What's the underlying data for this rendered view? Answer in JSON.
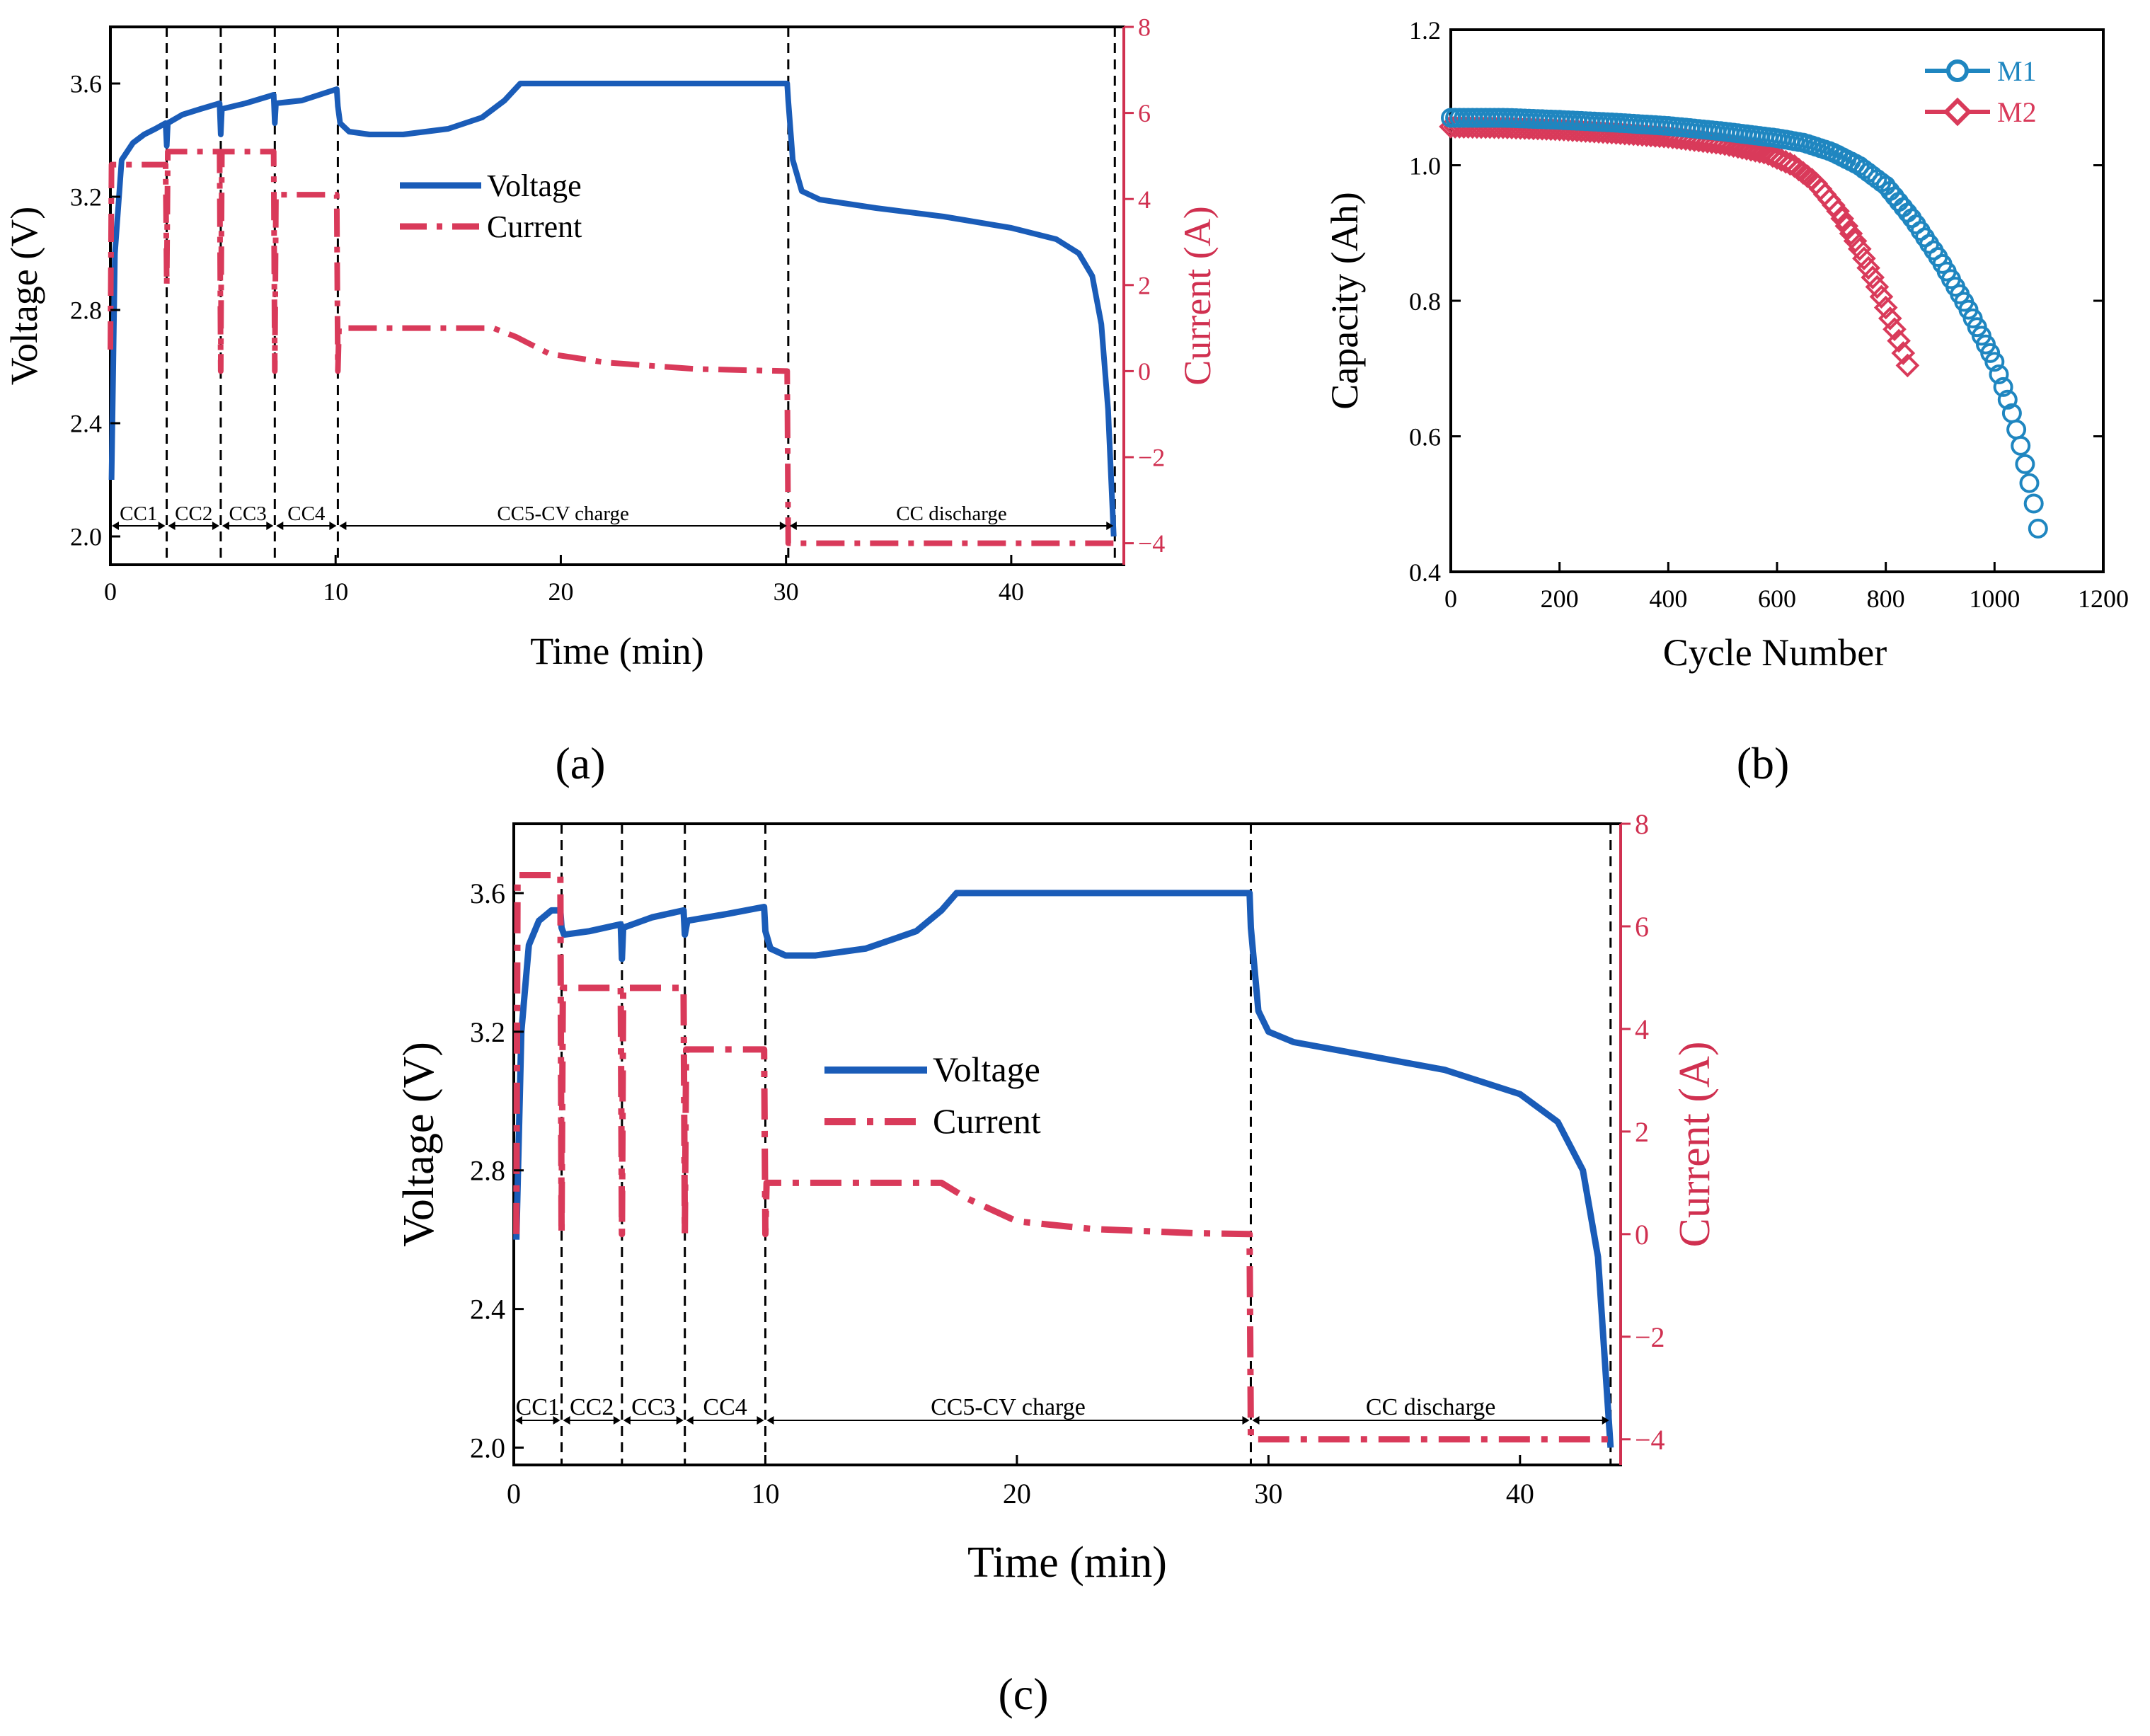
{
  "colors": {
    "voltage": "#1a5cb8",
    "current": "#d93a5a",
    "m1": "#1f86c0",
    "m2": "#d93a5a",
    "axis_red": "#d03050"
  },
  "chart_data": [
    {
      "type": "line",
      "panel": "(a)",
      "xlabel": "Time (min)",
      "ylabel": "Voltage (V)",
      "y2label": "Current (A)",
      "xlim": [
        0,
        45
      ],
      "ylim": [
        1.9,
        3.8
      ],
      "y2lim": [
        -4.5,
        8
      ],
      "xticks": [
        "0",
        "10",
        "20",
        "30",
        "40"
      ],
      "xtick_values": [
        0,
        10,
        20,
        30,
        40
      ],
      "yticks": [
        "2.0",
        "2.4",
        "2.8",
        "3.2",
        "3.6"
      ],
      "ytick_values": [
        2.0,
        2.4,
        2.8,
        3.2,
        3.6
      ],
      "y2ticks": [
        "−4",
        "−2",
        "0",
        "2",
        "4",
        "6",
        "8"
      ],
      "y2tick_values": [
        -4,
        -2,
        0,
        2,
        4,
        6,
        8
      ],
      "legend": [
        "Voltage",
        "Current"
      ],
      "stage_boundaries": [
        2.5,
        4.9,
        7.3,
        10.1,
        30.1,
        44.6
      ],
      "stage_labels": [
        {
          "text": "CC1",
          "from": 0,
          "to": 2.5
        },
        {
          "text": "CC2",
          "from": 2.5,
          "to": 4.9
        },
        {
          "text": "CC3",
          "from": 4.9,
          "to": 7.3
        },
        {
          "text": "CC4",
          "from": 7.3,
          "to": 10.1
        },
        {
          "text": "CC5-CV charge",
          "from": 10.1,
          "to": 30.1
        },
        {
          "text": "CC discharge",
          "from": 30.1,
          "to": 44.6
        }
      ],
      "series": [
        {
          "name": "Voltage",
          "axis": "left",
          "points": [
            [
              0.05,
              2.2
            ],
            [
              0.2,
              3.0
            ],
            [
              0.5,
              3.33
            ],
            [
              1,
              3.39
            ],
            [
              1.5,
              3.42
            ],
            [
              2,
              3.44
            ],
            [
              2.45,
              3.46
            ],
            [
              2.5,
              3.38
            ],
            [
              2.55,
              3.46
            ],
            [
              3.2,
              3.49
            ],
            [
              4.0,
              3.51
            ],
            [
              4.85,
              3.53
            ],
            [
              4.9,
              3.42
            ],
            [
              4.95,
              3.51
            ],
            [
              6,
              3.53
            ],
            [
              7.25,
              3.56
            ],
            [
              7.3,
              3.46
            ],
            [
              7.35,
              3.53
            ],
            [
              8.5,
              3.54
            ],
            [
              10.05,
              3.58
            ],
            [
              10.1,
              3.52
            ],
            [
              10.2,
              3.46
            ],
            [
              10.6,
              3.43
            ],
            [
              11.5,
              3.42
            ],
            [
              13,
              3.42
            ],
            [
              15,
              3.44
            ],
            [
              16.5,
              3.48
            ],
            [
              17.5,
              3.54
            ],
            [
              18.2,
              3.6
            ],
            [
              20,
              3.6
            ],
            [
              25,
              3.6
            ],
            [
              30.05,
              3.6
            ],
            [
              30.1,
              3.54
            ],
            [
              30.3,
              3.33
            ],
            [
              30.7,
              3.22
            ],
            [
              31.5,
              3.19
            ],
            [
              34,
              3.16
            ],
            [
              37,
              3.13
            ],
            [
              40,
              3.09
            ],
            [
              42,
              3.05
            ],
            [
              43,
              3.0
            ],
            [
              43.6,
              2.92
            ],
            [
              44.0,
              2.75
            ],
            [
              44.3,
              2.45
            ],
            [
              44.55,
              2.0
            ]
          ]
        },
        {
          "name": "Current",
          "axis": "right",
          "points": [
            [
              0,
              0.5
            ],
            [
              0.05,
              4.8
            ],
            [
              2.45,
              4.8
            ],
            [
              2.5,
              2
            ],
            [
              2.55,
              5.1
            ],
            [
              4.85,
              5.1
            ],
            [
              4.9,
              0
            ],
            [
              4.95,
              5.1
            ],
            [
              7.25,
              5.1
            ],
            [
              7.3,
              0
            ],
            [
              7.35,
              4.1
            ],
            [
              10.05,
              4.1
            ],
            [
              10.1,
              0
            ],
            [
              10.15,
              1
            ],
            [
              17,
              1
            ],
            [
              18,
              0.8
            ],
            [
              19.5,
              0.4
            ],
            [
              22,
              0.2
            ],
            [
              26,
              0.05
            ],
            [
              30.05,
              0
            ],
            [
              30.1,
              -4
            ],
            [
              44.6,
              -4
            ]
          ]
        }
      ]
    },
    {
      "type": "scatter",
      "panel": "(b)",
      "xlabel": "Cycle Number",
      "ylabel": "Capacity (Ah)",
      "xlim": [
        0,
        1200
      ],
      "ylim": [
        0.4,
        1.2
      ],
      "xticks": [
        "0",
        "200",
        "400",
        "600",
        "800",
        "1000",
        "1200"
      ],
      "xtick_values": [
        0,
        200,
        400,
        600,
        800,
        1000,
        1200
      ],
      "yticks": [
        "0.4",
        "0.6",
        "0.8",
        "1.0",
        "1.2"
      ],
      "ytick_values": [
        0.4,
        0.6,
        0.8,
        1.0,
        1.2
      ],
      "legend": [
        "M1",
        "M2"
      ],
      "series": [
        {
          "name": "M1",
          "marker": "circle",
          "points": [
            [
              0,
              1.07
            ],
            [
              100,
              1.07
            ],
            [
              200,
              1.067
            ],
            [
              300,
              1.063
            ],
            [
              400,
              1.058
            ],
            [
              500,
              1.05
            ],
            [
              600,
              1.04
            ],
            [
              650,
              1.033
            ],
            [
              700,
              1.02
            ],
            [
              750,
              1.0
            ],
            [
              800,
              0.97
            ],
            [
              850,
              0.92
            ],
            [
              900,
              0.86
            ],
            [
              950,
              0.79
            ],
            [
              1000,
              0.71
            ],
            [
              1030,
              0.64
            ],
            [
              1050,
              0.58
            ],
            [
              1070,
              0.51
            ],
            [
              1083,
              0.45
            ]
          ]
        },
        {
          "name": "M2",
          "marker": "diamond",
          "points": [
            [
              0,
              1.057
            ],
            [
              100,
              1.056
            ],
            [
              200,
              1.053
            ],
            [
              300,
              1.048
            ],
            [
              400,
              1.042
            ],
            [
              500,
              1.032
            ],
            [
              580,
              1.018
            ],
            [
              630,
              1.0
            ],
            [
              670,
              0.975
            ],
            [
              710,
              0.935
            ],
            [
              750,
              0.88
            ],
            [
              790,
              0.81
            ],
            [
              820,
              0.75
            ],
            [
              842,
              0.7
            ]
          ]
        }
      ]
    },
    {
      "type": "line",
      "panel": "(c)",
      "xlabel": "Time (min)",
      "ylabel": "Voltage (V)",
      "y2label": "Current (A)",
      "xlim": [
        0,
        44
      ],
      "ylim": [
        1.95,
        3.8
      ],
      "y2lim": [
        -4.5,
        8
      ],
      "xticks": [
        "0",
        "10",
        "20",
        "30",
        "40"
      ],
      "xtick_values": [
        0,
        10,
        20,
        30,
        40
      ],
      "yticks": [
        "2.0",
        "2.4",
        "2.8",
        "3.2",
        "3.6"
      ],
      "ytick_values": [
        2.0,
        2.4,
        2.8,
        3.2,
        3.6
      ],
      "y2ticks": [
        "−4",
        "−2",
        "0",
        "2",
        "4",
        "6",
        "8"
      ],
      "y2tick_values": [
        -4,
        -2,
        0,
        2,
        4,
        6,
        8
      ],
      "legend": [
        "Voltage",
        "Current"
      ],
      "stage_boundaries": [
        1.9,
        4.3,
        6.8,
        10.0,
        29.3,
        43.6
      ],
      "stage_labels": [
        {
          "text": "CC1",
          "from": 0,
          "to": 1.9
        },
        {
          "text": "CC2",
          "from": 1.9,
          "to": 4.3
        },
        {
          "text": "CC3",
          "from": 4.3,
          "to": 6.8
        },
        {
          "text": "CC4",
          "from": 6.8,
          "to": 10.0
        },
        {
          "text": "CC5-CV charge",
          "from": 10.0,
          "to": 29.3
        },
        {
          "text": "CC discharge",
          "from": 29.3,
          "to": 43.6
        }
      ],
      "series": [
        {
          "name": "Voltage",
          "axis": "left",
          "points": [
            [
              0.1,
              2.6
            ],
            [
              0.3,
              3.2
            ],
            [
              0.6,
              3.45
            ],
            [
              1.0,
              3.52
            ],
            [
              1.5,
              3.55
            ],
            [
              1.85,
              3.55
            ],
            [
              1.9,
              3.5
            ],
            [
              2.0,
              3.48
            ],
            [
              3,
              3.49
            ],
            [
              4.25,
              3.51
            ],
            [
              4.3,
              3.41
            ],
            [
              4.35,
              3.5
            ],
            [
              5.5,
              3.53
            ],
            [
              6.75,
              3.55
            ],
            [
              6.8,
              3.48
            ],
            [
              6.9,
              3.52
            ],
            [
              8.5,
              3.54
            ],
            [
              9.95,
              3.56
            ],
            [
              10.0,
              3.49
            ],
            [
              10.2,
              3.44
            ],
            [
              10.8,
              3.42
            ],
            [
              12,
              3.42
            ],
            [
              14,
              3.44
            ],
            [
              16,
              3.49
            ],
            [
              17,
              3.55
            ],
            [
              17.6,
              3.6
            ],
            [
              20,
              3.6
            ],
            [
              25,
              3.6
            ],
            [
              29.25,
              3.6
            ],
            [
              29.3,
              3.5
            ],
            [
              29.6,
              3.26
            ],
            [
              30,
              3.2
            ],
            [
              31,
              3.17
            ],
            [
              34,
              3.13
            ],
            [
              37,
              3.09
            ],
            [
              40,
              3.02
            ],
            [
              41.5,
              2.94
            ],
            [
              42.5,
              2.8
            ],
            [
              43.1,
              2.55
            ],
            [
              43.6,
              2.0
            ]
          ]
        },
        {
          "name": "Current",
          "axis": "right",
          "points": [
            [
              0.1,
              0
            ],
            [
              0.15,
              7
            ],
            [
              1.85,
              7
            ],
            [
              1.9,
              0
            ],
            [
              1.95,
              4.8
            ],
            [
              4.25,
              4.8
            ],
            [
              4.3,
              0
            ],
            [
              4.35,
              4.8
            ],
            [
              6.75,
              4.8
            ],
            [
              6.8,
              0
            ],
            [
              6.85,
              3.6
            ],
            [
              9.95,
              3.6
            ],
            [
              10.0,
              0
            ],
            [
              10.05,
              1
            ],
            [
              17,
              1
            ],
            [
              18,
              0.7
            ],
            [
              20,
              0.25
            ],
            [
              23,
              0.1
            ],
            [
              27,
              0.02
            ],
            [
              29.25,
              0
            ],
            [
              29.3,
              -4
            ],
            [
              43.6,
              -4
            ]
          ]
        }
      ]
    }
  ],
  "panel_labels": {
    "a": "(a)",
    "b": "(b)",
    "c": "(c)"
  }
}
